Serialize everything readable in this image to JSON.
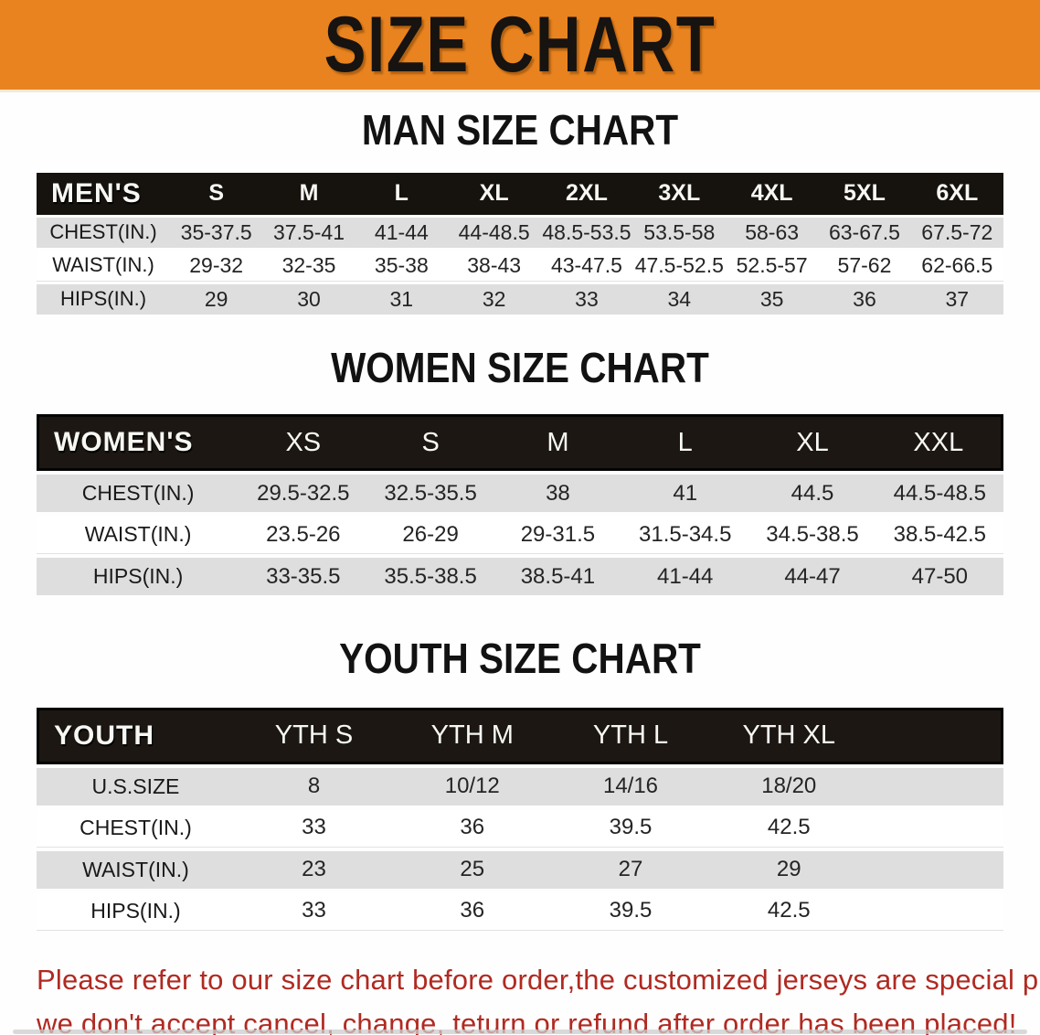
{
  "banner": {
    "title": "SIZE CHART",
    "bg_color": "#E8831F"
  },
  "sections": [
    {
      "id": "men",
      "heading": "MAN SIZE CHART",
      "table": {
        "corner_label": "MEN'S",
        "sizes": [
          "S",
          "M",
          "L",
          "XL",
          "2XL",
          "3XL",
          "4XL",
          "5XL",
          "6XL"
        ],
        "rows": [
          {
            "label": "CHEST(IN.)",
            "values": [
              "35-37.5",
              "37.5-41",
              "41-44",
              "44-48.5",
              "48.5-53.5",
              "53.5-58",
              "58-63",
              "63-67.5",
              "67.5-72"
            ]
          },
          {
            "label": "WAIST(IN.)",
            "values": [
              "29-32",
              "32-35",
              "35-38",
              "38-43",
              "43-47.5",
              "47.5-52.5",
              "52.5-57",
              "57-62",
              "62-66.5"
            ]
          },
          {
            "label": "HIPS(IN.)",
            "values": [
              "29",
              "30",
              "31",
              "32",
              "33",
              "34",
              "35",
              "36",
              "37"
            ]
          }
        ]
      }
    },
    {
      "id": "women",
      "heading": "WOMEN SIZE CHART",
      "table": {
        "corner_label": "WOMEN'S",
        "sizes": [
          "XS",
          "S",
          "M",
          "L",
          "XL",
          "XXL"
        ],
        "rows": [
          {
            "label": "CHEST(IN.)",
            "values": [
              "29.5-32.5",
              "32.5-35.5",
              "38",
              "41",
              "44.5",
              "44.5-48.5"
            ]
          },
          {
            "label": "WAIST(IN.)",
            "values": [
              "23.5-26",
              "26-29",
              "29-31.5",
              "31.5-34.5",
              "34.5-38.5",
              "38.5-42.5"
            ]
          },
          {
            "label": "HIPS(IN.)",
            "values": [
              "33-35.5",
              "35.5-38.5",
              "38.5-41",
              "41-44",
              "44-47",
              "47-50"
            ]
          }
        ]
      }
    },
    {
      "id": "youth",
      "heading": "YOUTH SIZE CHART",
      "table": {
        "corner_label": "YOUTH",
        "sizes": [
          "YTH S",
          "YTH M",
          "YTH L",
          "YTH XL"
        ],
        "rows": [
          {
            "label": "U.S.SIZE",
            "values": [
              "8",
              "10/12",
              "14/16",
              "18/20"
            ]
          },
          {
            "label": "CHEST(IN.)",
            "values": [
              "33",
              "36",
              "39.5",
              "42.5"
            ]
          },
          {
            "label": "WAIST(IN.)",
            "values": [
              "23",
              "25",
              "27",
              "29"
            ]
          },
          {
            "label": "HIPS(IN.)",
            "values": [
              "33",
              "36",
              "39.5",
              "42.5"
            ]
          }
        ]
      }
    }
  ],
  "footer": {
    "line1": "Please refer to our size chart before order,the customized jerseys are special products,",
    "line2": "we don't accept cancel, change, teturn or refund after order has been placed!",
    "text_color": "#B02A22"
  }
}
